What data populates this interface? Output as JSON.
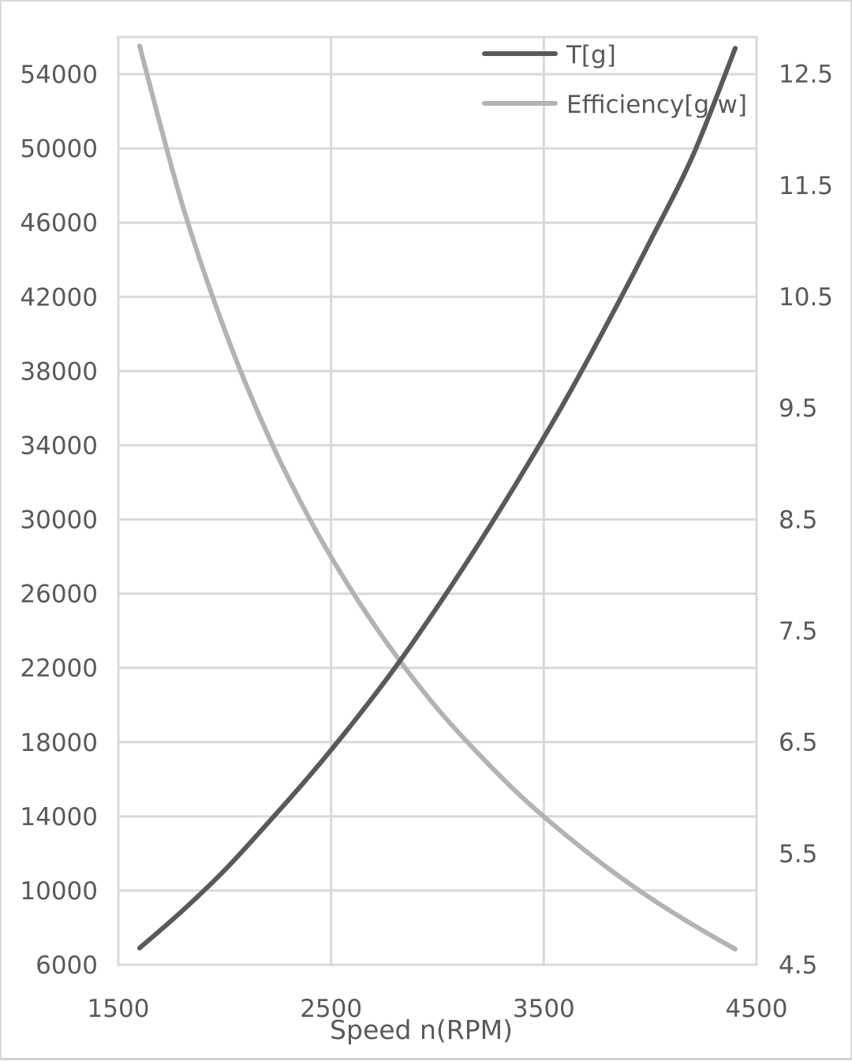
{
  "chart_data": {
    "type": "line",
    "title": "",
    "xlabel": "Speed n(RPM)",
    "ylabel": "",
    "y2label": "",
    "xlim": [
      1500,
      4500
    ],
    "ylim": [
      6000,
      56000
    ],
    "y2lim": [
      4.5,
      12.83
    ],
    "x_ticks": [
      1500,
      2500,
      3500,
      4500
    ],
    "y_ticks": [
      6000,
      10000,
      14000,
      18000,
      22000,
      26000,
      30000,
      34000,
      38000,
      42000,
      46000,
      50000,
      54000
    ],
    "y2_ticks": [
      "4.5",
      "5.5",
      "6.5",
      "7.5",
      "8.5",
      "9.5",
      "10.5",
      "11.5",
      "12.5"
    ],
    "grid": true,
    "legend_position": "top-right inside",
    "x": [
      1600,
      1800,
      2000,
      2200,
      2400,
      2600,
      2800,
      3000,
      3200,
      3400,
      3600,
      3800,
      4000,
      4200,
      4400
    ],
    "series": [
      {
        "name": "T[g]",
        "axis": "left",
        "color": "#595959",
        "values": [
          6900,
          8900,
          11100,
          13600,
          16200,
          19000,
          22000,
          25300,
          28800,
          32500,
          36400,
          40600,
          45000,
          49600,
          55400
        ]
      },
      {
        "name": "Efficiency[g/w]",
        "axis": "right",
        "color": "#b3b3b3",
        "values": [
          12.75,
          11.33,
          10.2,
          9.27,
          8.5,
          7.85,
          7.29,
          6.8,
          6.38,
          6.0,
          5.67,
          5.37,
          5.1,
          4.86,
          4.64
        ]
      }
    ]
  },
  "legend": {
    "items": [
      {
        "label": "T[g]",
        "color": "#595959"
      },
      {
        "label": "Efficiency[g/w]",
        "color": "#b3b3b3"
      }
    ]
  },
  "colors": {
    "grid": "#d9d9d9",
    "text": "#595959",
    "border": "#d9d9d9"
  }
}
